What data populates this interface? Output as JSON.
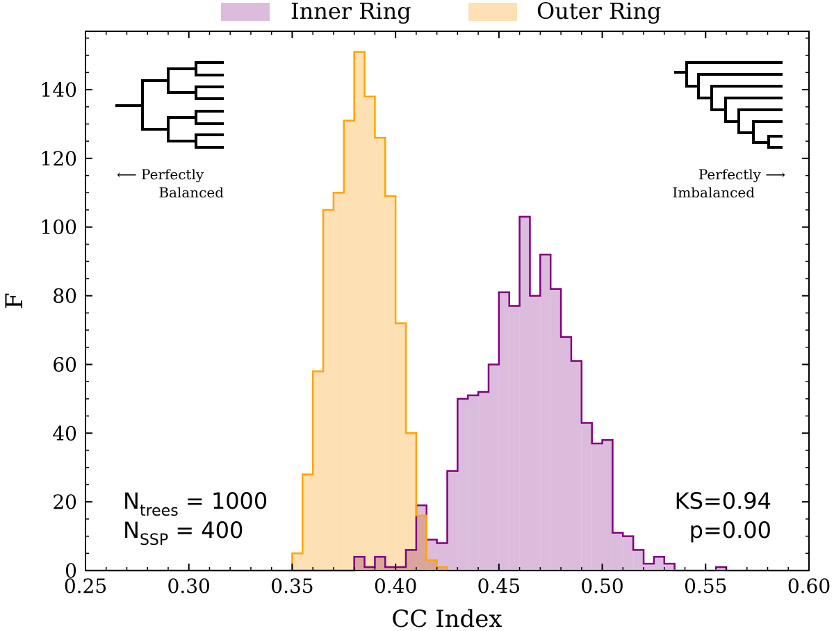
{
  "chart_data": {
    "type": "histogram",
    "xlabel": "CC Index",
    "ylabel": "F",
    "xlim": [
      0.25,
      0.6
    ],
    "ylim": [
      0,
      157
    ],
    "xticks": [
      "0.25",
      "0.30",
      "0.35",
      "0.40",
      "0.45",
      "0.50",
      "0.55",
      "0.60"
    ],
    "yticks": [
      "0",
      "20",
      "40",
      "60",
      "80",
      "100",
      "120",
      "140"
    ],
    "xtick_values": [
      0.25,
      0.3,
      0.35,
      0.4,
      0.45,
      0.5,
      0.55,
      0.6
    ],
    "ytick_values": [
      0,
      20,
      40,
      60,
      80,
      100,
      120,
      140
    ],
    "legend_position": "top-center, outside plot",
    "series": [
      {
        "name": "Inner Ring",
        "line_color": "#800080",
        "fill_color": "#dcbcdc",
        "bin_start": 0.38,
        "bin_width": 0.005,
        "counts": [
          4,
          1,
          4,
          1,
          1,
          6,
          19,
          9,
          8,
          29,
          50,
          51,
          52,
          60,
          81,
          77,
          103,
          80,
          92,
          82,
          68,
          61,
          43,
          37,
          38,
          11,
          10,
          6,
          2,
          4,
          2,
          0,
          0,
          0,
          0,
          1
        ]
      },
      {
        "name": "Outer Ring",
        "line_color": "#ffa500",
        "fill_color": "#fde0b4",
        "bin_start": 0.35,
        "bin_width": 0.005,
        "counts": [
          5,
          28,
          58,
          105,
          110,
          131,
          151,
          138,
          126,
          109,
          72,
          40,
          16,
          3,
          1
        ]
      }
    ],
    "annotations": {
      "ntrees_main": "N",
      "ntrees_sub": "trees",
      "ntrees_value": " = 1000",
      "nssp_main": "N",
      "nssp_sub": "SSP",
      "nssp_value": "  = 400",
      "ks": "KS=0.94",
      "p": "p=0.00",
      "balanced_line1": "⟵ Perfectly",
      "balanced_line2": "Balanced",
      "imbalanced_line1": "Perfectly ⟶",
      "imbalanced_line2": "Imbalanced"
    }
  }
}
